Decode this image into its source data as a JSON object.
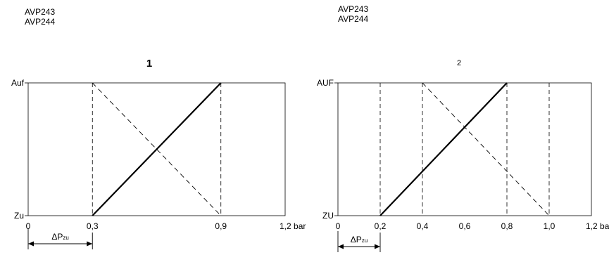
{
  "models_left": [
    "AVP243",
    "AVP244"
  ],
  "models_right": [
    "AVP243",
    "AVP244"
  ],
  "chart_data": [
    {
      "type": "line",
      "title": "1",
      "y_categories": [
        "Zu",
        "Auf"
      ],
      "xticks": [
        "0",
        "0,3",
        "0,9",
        "1,2 bar"
      ],
      "xlim": [
        0,
        1.2
      ],
      "series": [
        {
          "style": "solid",
          "points": [
            [
              0.3,
              0
            ],
            [
              0.9,
              1
            ]
          ]
        },
        {
          "style": "dashed",
          "points": [
            [
              0.3,
              1
            ],
            [
              0.9,
              0
            ]
          ]
        }
      ],
      "verticals": [
        0.3,
        0.9
      ],
      "delta_label": "ΔP",
      "delta_sub": "zu",
      "delta_range": [
        0,
        0.3
      ]
    },
    {
      "type": "line",
      "title": "2",
      "y_categories": [
        "ZU",
        "AUF"
      ],
      "xticks": [
        "0",
        "0,2",
        "0,4",
        "0,6",
        "0,8",
        "1,0",
        "1,2 bar"
      ],
      "xlim": [
        0,
        1.2
      ],
      "series": [
        {
          "style": "solid",
          "points": [
            [
              0.2,
              0
            ],
            [
              0.8,
              1
            ]
          ]
        },
        {
          "style": "dashed",
          "points": [
            [
              0.4,
              1
            ],
            [
              1.0,
              0
            ]
          ]
        }
      ],
      "verticals": [
        0.2,
        0.4,
        0.8,
        1.0
      ],
      "delta_label": "ΔP",
      "delta_sub": "zu",
      "delta_range": [
        0,
        0.2
      ]
    }
  ]
}
